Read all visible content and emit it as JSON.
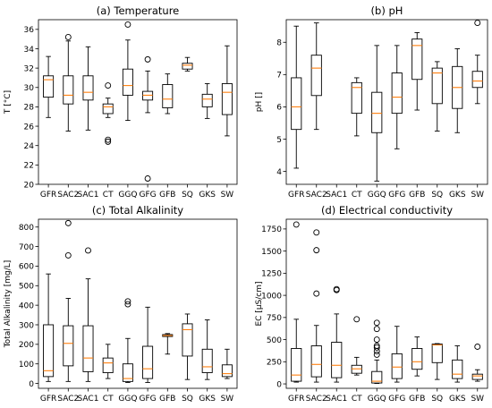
{
  "chart_data": [
    {
      "type": "box",
      "title": "(a) Temperature",
      "ylabel": "T [°C]",
      "xlabel": "",
      "categories": [
        "GFR",
        "SAC2",
        "SAC1",
        "CT",
        "GGQ",
        "GFG",
        "GFB",
        "SQ",
        "GKS",
        "SW"
      ],
      "ylim": [
        20,
        37
      ],
      "yticks": [
        20,
        22,
        24,
        26,
        28,
        30,
        32,
        34,
        36
      ],
      "boxes": [
        {
          "min": 26.9,
          "q1": 29.0,
          "median": 30.8,
          "q3": 31.2,
          "max": 33.2,
          "outliers": []
        },
        {
          "min": 25.5,
          "q1": 28.3,
          "median": 29.2,
          "q3": 31.2,
          "max": 34.8,
          "outliers": [
            35.2
          ]
        },
        {
          "min": 25.6,
          "q1": 28.7,
          "median": 29.5,
          "q3": 31.2,
          "max": 34.2,
          "outliers": []
        },
        {
          "min": 26.9,
          "q1": 27.3,
          "median": 28.0,
          "q3": 28.3,
          "max": 28.9,
          "outliers": [
            30.2,
            24.6,
            24.4
          ]
        },
        {
          "min": 26.6,
          "q1": 29.2,
          "median": 30.2,
          "q3": 31.9,
          "max": 34.9,
          "outliers": [
            36.5
          ]
        },
        {
          "min": 27.4,
          "q1": 28.7,
          "median": 29.2,
          "q3": 29.6,
          "max": 31.7,
          "outliers": [
            32.9,
            20.6
          ]
        },
        {
          "min": 27.3,
          "q1": 27.9,
          "median": 28.8,
          "q3": 30.3,
          "max": 31.4,
          "outliers": []
        },
        {
          "min": 31.7,
          "q1": 31.9,
          "median": 32.3,
          "q3": 32.5,
          "max": 33.1,
          "outliers": []
        },
        {
          "min": 26.8,
          "q1": 28.0,
          "median": 28.8,
          "q3": 29.3,
          "max": 30.4,
          "outliers": []
        },
        {
          "min": 25.0,
          "q1": 27.2,
          "median": 29.5,
          "q3": 30.4,
          "max": 34.3,
          "outliers": []
        }
      ]
    },
    {
      "type": "box",
      "title": "(b) pH",
      "ylabel": "pH []",
      "xlabel": "",
      "categories": [
        "GFR",
        "SAC2",
        "SAC1",
        "CT",
        "GGQ",
        "GFG",
        "GFB",
        "SQ",
        "GKS",
        "SW"
      ],
      "ylim": [
        3.6,
        8.7
      ],
      "yticks": [
        4,
        5,
        6,
        7,
        8
      ],
      "boxes": [
        {
          "min": 4.1,
          "q1": 5.3,
          "median": 6.0,
          "q3": 6.9,
          "max": 8.5,
          "outliers": []
        },
        {
          "min": 5.3,
          "q1": 6.35,
          "median": 7.2,
          "q3": 7.6,
          "max": 8.6,
          "outliers": []
        },
        null,
        {
          "min": 5.1,
          "q1": 5.8,
          "median": 6.6,
          "q3": 6.75,
          "max": 6.9,
          "outliers": []
        },
        {
          "min": 3.7,
          "q1": 5.2,
          "median": 5.8,
          "q3": 6.45,
          "max": 7.9,
          "outliers": []
        },
        {
          "min": 4.7,
          "q1": 5.8,
          "median": 6.3,
          "q3": 7.05,
          "max": 7.9,
          "outliers": []
        },
        {
          "min": 5.9,
          "q1": 6.85,
          "median": 7.9,
          "q3": 8.1,
          "max": 8.3,
          "outliers": []
        },
        {
          "min": 5.25,
          "q1": 6.1,
          "median": 7.05,
          "q3": 7.2,
          "max": 7.4,
          "outliers": []
        },
        {
          "min": 5.2,
          "q1": 5.95,
          "median": 6.6,
          "q3": 7.25,
          "max": 7.8,
          "outliers": []
        },
        {
          "min": 6.1,
          "q1": 6.6,
          "median": 6.8,
          "q3": 7.1,
          "max": 7.6,
          "outliers": [
            8.6
          ]
        }
      ]
    },
    {
      "type": "box",
      "title": "(c) Total Alkalinity",
      "ylabel": "Total Alkalinity [mg/L]",
      "xlabel": "",
      "categories": [
        "GFR",
        "SAC2",
        "SAC1",
        "CT",
        "GGQ",
        "GFG",
        "GFB",
        "SQ",
        "GKS",
        "SW"
      ],
      "ylim": [
        -25,
        840
      ],
      "yticks": [
        0,
        100,
        200,
        300,
        400,
        500,
        600,
        700,
        800
      ],
      "boxes": [
        {
          "min": 10,
          "q1": 35,
          "median": 65,
          "q3": 300,
          "max": 560,
          "outliers": []
        },
        {
          "min": 10,
          "q1": 90,
          "median": 205,
          "q3": 295,
          "max": 435,
          "outliers": [
            820,
            655
          ]
        },
        {
          "min": 10,
          "q1": 60,
          "median": 130,
          "q3": 295,
          "max": 535,
          "outliers": [
            680
          ]
        },
        {
          "min": 25,
          "q1": 55,
          "median": 105,
          "q3": 130,
          "max": 200,
          "outliers": []
        },
        {
          "min": 5,
          "q1": 10,
          "median": 25,
          "q3": 100,
          "max": 230,
          "outliers": [
            420,
            405
          ]
        },
        {
          "min": 5,
          "q1": 25,
          "median": 75,
          "q3": 190,
          "max": 390,
          "outliers": []
        },
        {
          "min": 150,
          "q1": 240,
          "median": 245,
          "q3": 250,
          "max": 255,
          "outliers": []
        },
        {
          "min": 20,
          "q1": 140,
          "median": 275,
          "q3": 305,
          "max": 355,
          "outliers": []
        },
        {
          "min": 20,
          "q1": 55,
          "median": 85,
          "q3": 175,
          "max": 325,
          "outliers": []
        },
        {
          "min": 25,
          "q1": 35,
          "median": 50,
          "q3": 95,
          "max": 175,
          "outliers": []
        }
      ]
    },
    {
      "type": "box",
      "title": "(d) Electrical conductivity",
      "ylabel": "EC [µS/cm]",
      "xlabel": "",
      "categories": [
        "GFR",
        "SAC2",
        "SAC1",
        "CT",
        "GGQ",
        "GFG",
        "GFB",
        "SQ",
        "GKS",
        "SW"
      ],
      "ylim": [
        -50,
        1860
      ],
      "yticks": [
        0,
        250,
        500,
        750,
        1000,
        1250,
        1500,
        1750
      ],
      "boxes": [
        {
          "min": 20,
          "q1": 30,
          "median": 100,
          "q3": 400,
          "max": 730,
          "outliers": [
            1800
          ]
        },
        {
          "min": 20,
          "q1": 80,
          "median": 220,
          "q3": 430,
          "max": 660,
          "outliers": [
            1710,
            1510,
            1020
          ]
        },
        {
          "min": 20,
          "q1": 70,
          "median": 210,
          "q3": 470,
          "max": 790,
          "outliers": [
            1070,
            1060
          ]
        },
        {
          "min": 100,
          "q1": 120,
          "median": 170,
          "q3": 210,
          "max": 300,
          "outliers": [
            730
          ]
        },
        {
          "min": 5,
          "q1": 10,
          "median": 30,
          "q3": 140,
          "max": 270,
          "outliers": [
            690,
            620,
            500,
            430,
            410,
            370,
            330
          ]
        },
        {
          "min": 20,
          "q1": 60,
          "median": 190,
          "q3": 340,
          "max": 650,
          "outliers": []
        },
        {
          "min": 90,
          "q1": 165,
          "median": 250,
          "q3": 400,
          "max": 530,
          "outliers": []
        },
        {
          "min": 50,
          "q1": 240,
          "median": 440,
          "q3": 450,
          "max": 455,
          "outliers": []
        },
        {
          "min": 20,
          "q1": 60,
          "median": 110,
          "q3": 270,
          "max": 430,
          "outliers": []
        },
        {
          "min": 30,
          "q1": 50,
          "median": 90,
          "q3": 110,
          "max": 160,
          "outliers": [
            420
          ]
        }
      ]
    }
  ],
  "colors": {
    "box": "#000000",
    "median": "#ff7f0e",
    "background": "#ffffff"
  }
}
